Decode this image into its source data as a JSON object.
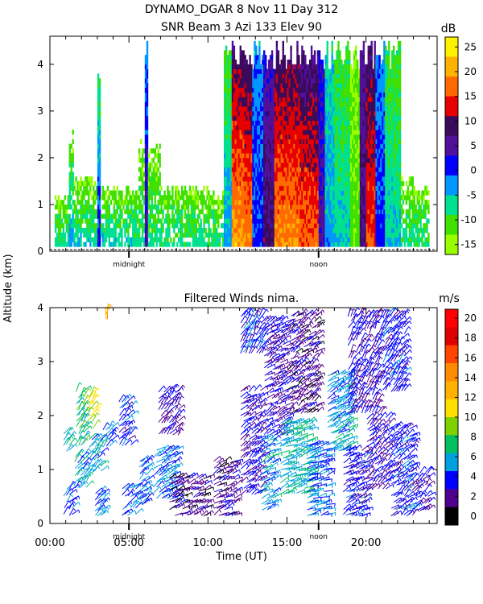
{
  "header": {
    "title_line1": "DYNAMO_DGAR    8 Nov 11 Day 312",
    "title_line2": "SNR Beam 3 Azi 133 Elev 90"
  },
  "shared": {
    "y_axis_label": "Altitude (km)",
    "x_axis_label": "Time (UT)",
    "x_tick_labels": [
      "00:00",
      "05:00",
      "10:00",
      "15:00",
      "20:00"
    ],
    "x_ticks_hours": [
      0,
      5,
      10,
      15,
      20
    ],
    "marker_labels": [
      "midnight",
      "noon"
    ],
    "marker_hours": [
      5,
      17
    ]
  },
  "chart_data": [
    {
      "type": "heatmap",
      "title": "SNR Beam 3 Azi 133 Elev 90",
      "xlabel": "",
      "ylabel": "Altitude (km)",
      "xlim": [
        0,
        24.5
      ],
      "ylim": [
        0,
        4.6
      ],
      "yticks": [
        0,
        1,
        2,
        3,
        4
      ],
      "colorbar": {
        "unit": "dB",
        "ticks": [
          25,
          20,
          15,
          10,
          5,
          0,
          -5,
          -10,
          -15
        ],
        "bins": [
          {
            "min": 27.5,
            "color": "#fff200"
          },
          {
            "min": 22.5,
            "color": "#ffb200"
          },
          {
            "min": 17.5,
            "color": "#ff6a00"
          },
          {
            "min": 12.5,
            "color": "#e60000"
          },
          {
            "min": 7.5,
            "color": "#3c0a5a"
          },
          {
            "min": 2.5,
            "color": "#50109a"
          },
          {
            "min": -2.5,
            "color": "#0000ff"
          },
          {
            "min": -7.5,
            "color": "#0096ff"
          },
          {
            "min": -12.5,
            "color": "#00e090"
          },
          {
            "min": -17.5,
            "color": "#40e000"
          },
          {
            "min": -22.5,
            "color": "#99ff00"
          }
        ]
      },
      "columns": [
        {
          "t0": 0.3,
          "t1": 1.2,
          "h_top": 1.2,
          "snr_surface": -10,
          "snr_top": -18
        },
        {
          "t0": 1.2,
          "t1": 1.5,
          "h_top": 2.6,
          "snr_surface": -5,
          "snr_top": -18
        },
        {
          "t0": 1.5,
          "t1": 3.0,
          "h_top": 1.6,
          "snr_surface": -8,
          "snr_top": -18
        },
        {
          "t0": 3.0,
          "t1": 3.2,
          "h_top": 4.2,
          "snr_surface": 2,
          "snr_top": -15
        },
        {
          "t0": 3.2,
          "t1": 5.6,
          "h_top": 1.4,
          "snr_surface": -8,
          "snr_top": -18
        },
        {
          "t0": 5.6,
          "t1": 6.0,
          "h_top": 2.4,
          "snr_surface": -10,
          "snr_top": -18
        },
        {
          "t0": 6.0,
          "t1": 6.2,
          "h_top": 4.5,
          "snr_surface": 5,
          "snr_top": -5
        },
        {
          "t0": 6.2,
          "t1": 7.0,
          "h_top": 2.3,
          "snr_surface": -10,
          "snr_top": -18
        },
        {
          "t0": 7.0,
          "t1": 10.0,
          "h_top": 1.4,
          "snr_surface": -10,
          "snr_top": -18
        },
        {
          "t0": 10.0,
          "t1": 11.0,
          "h_top": 1.3,
          "snr_surface": -10,
          "snr_top": -18
        },
        {
          "t0": 11.0,
          "t1": 11.5,
          "h_top": 4.5,
          "snr_surface": -5,
          "snr_top": -15
        },
        {
          "t0": 11.5,
          "t1": 12.3,
          "h_top": 4.5,
          "snr_surface": 25,
          "snr_top": 8
        },
        {
          "t0": 12.3,
          "t1": 12.8,
          "h_top": 4.5,
          "snr_surface": 22,
          "snr_top": 8
        },
        {
          "t0": 12.8,
          "t1": 13.5,
          "h_top": 4.5,
          "snr_surface": 0,
          "snr_top": -5
        },
        {
          "t0": 13.5,
          "t1": 14.2,
          "h_top": 4.5,
          "snr_surface": 10,
          "snr_top": 2
        },
        {
          "t0": 14.2,
          "t1": 15.8,
          "h_top": 4.5,
          "snr_surface": 23,
          "snr_top": 8
        },
        {
          "t0": 15.8,
          "t1": 17.0,
          "h_top": 4.5,
          "snr_surface": 20,
          "snr_top": 6
        },
        {
          "t0": 17.0,
          "t1": 17.4,
          "h_top": 4.5,
          "snr_surface": 5,
          "snr_top": 0
        },
        {
          "t0": 17.4,
          "t1": 18.0,
          "h_top": 4.5,
          "snr_surface": -5,
          "snr_top": -10
        },
        {
          "t0": 18.0,
          "t1": 19.0,
          "h_top": 4.5,
          "snr_surface": -8,
          "snr_top": -15
        },
        {
          "t0": 19.0,
          "t1": 19.6,
          "h_top": 4.5,
          "snr_surface": -15,
          "snr_top": -18
        },
        {
          "t0": 19.6,
          "t1": 20.0,
          "h_top": 4.5,
          "snr_surface": 8,
          "snr_top": 5
        },
        {
          "t0": 20.0,
          "t1": 20.6,
          "h_top": 4.5,
          "snr_surface": 18,
          "snr_top": 8
        },
        {
          "t0": 20.6,
          "t1": 21.2,
          "h_top": 4.5,
          "snr_surface": 0,
          "snr_top": -5
        },
        {
          "t0": 21.2,
          "t1": 22.2,
          "h_top": 4.5,
          "snr_surface": -8,
          "snr_top": -15
        },
        {
          "t0": 22.2,
          "t1": 23.0,
          "h_top": 1.6,
          "snr_surface": -10,
          "snr_top": -18
        },
        {
          "t0": 23.0,
          "t1": 24.0,
          "h_top": 1.4,
          "snr_surface": -10,
          "snr_top": -18
        }
      ]
    },
    {
      "type": "scatter",
      "title": "Filtered Winds nima.",
      "xlabel": "Time (UT)",
      "ylabel": "Altitude (km)",
      "xlim": [
        0,
        24.5
      ],
      "ylim": [
        0,
        4
      ],
      "yticks": [
        0,
        1,
        2,
        3,
        4
      ],
      "colorbar": {
        "unit": "m/s",
        "ticks": [
          20,
          18,
          16,
          14,
          12,
          10,
          8,
          6,
          4,
          2,
          0
        ],
        "bins": [
          {
            "min": 21,
            "color": "#ff0000"
          },
          {
            "min": 19,
            "color": "#e00000"
          },
          {
            "min": 17,
            "color": "#ff4500"
          },
          {
            "min": 15,
            "color": "#ff8c00"
          },
          {
            "min": 13,
            "color": "#ffb000"
          },
          {
            "min": 11,
            "color": "#ffe000"
          },
          {
            "min": 9,
            "color": "#80d000"
          },
          {
            "min": 7,
            "color": "#00c060"
          },
          {
            "min": 5,
            "color": "#00a0e0"
          },
          {
            "min": 3,
            "color": "#0000ff"
          },
          {
            "min": 1,
            "color": "#500090"
          },
          {
            "min": -1,
            "color": "#000000"
          }
        ]
      },
      "wind_clusters": [
        {
          "t0": 0.8,
          "t1": 1.3,
          "h0": 1.3,
          "h1": 1.7,
          "speed": 7,
          "dir": -55
        },
        {
          "t0": 0.8,
          "t1": 1.5,
          "h0": 0.1,
          "h1": 0.7,
          "speed": 5,
          "dir": -50
        },
        {
          "t0": 1.6,
          "t1": 2.2,
          "h0": 1.4,
          "h1": 2.5,
          "speed": 8,
          "dir": -55
        },
        {
          "t0": 1.5,
          "t1": 2.4,
          "h0": 0.6,
          "h1": 1.3,
          "speed": 6,
          "dir": -50
        },
        {
          "t0": 2.3,
          "t1": 2.8,
          "h0": 1.7,
          "h1": 2.4,
          "speed": 11,
          "dir": -55
        },
        {
          "t0": 2.4,
          "t1": 3.3,
          "h0": 0.9,
          "h1": 1.6,
          "speed": 6,
          "dir": -50
        },
        {
          "t0": 2.8,
          "t1": 3.4,
          "h0": 0.1,
          "h1": 0.6,
          "speed": 5,
          "dir": -45
        },
        {
          "t0": 3.3,
          "t1": 4.0,
          "h0": 1.4,
          "h1": 1.8,
          "speed": 5,
          "dir": -50
        },
        {
          "t0": 4.5,
          "t1": 5.5,
          "h0": 0.1,
          "h1": 0.7,
          "speed": 5,
          "dir": -40
        },
        {
          "t0": 4.3,
          "t1": 5.2,
          "h0": 1.4,
          "h1": 2.3,
          "speed": 4,
          "dir": -45
        },
        {
          "t0": 5.6,
          "t1": 6.2,
          "h0": 0.3,
          "h1": 1.2,
          "speed": 5,
          "dir": -40
        },
        {
          "t0": 6.5,
          "t1": 8.0,
          "h0": 0.4,
          "h1": 1.4,
          "speed": 5,
          "dir": -35
        },
        {
          "t0": 6.8,
          "t1": 8.2,
          "h0": 1.6,
          "h1": 2.5,
          "speed": 3,
          "dir": -50
        },
        {
          "t0": 7.5,
          "t1": 10.0,
          "h0": 0.1,
          "h1": 0.9,
          "speed": 2,
          "dir": -30
        },
        {
          "t0": 10.3,
          "t1": 11.8,
          "h0": 0.1,
          "h1": 1.2,
          "speed": 2,
          "dir": -30
        },
        {
          "t0": 12.0,
          "t1": 13.4,
          "h0": 0.5,
          "h1": 2.5,
          "speed": 3,
          "dir": -40
        },
        {
          "t0": 12.0,
          "t1": 13.5,
          "h0": 3.1,
          "h1": 3.9,
          "speed": 4,
          "dir": -60
        },
        {
          "t0": 13.3,
          "t1": 14.2,
          "h0": 0.2,
          "h1": 1.6,
          "speed": 6,
          "dir": -30
        },
        {
          "t0": 13.5,
          "t1": 15.0,
          "h0": 1.6,
          "h1": 3.8,
          "speed": 3,
          "dir": -35
        },
        {
          "t0": 14.5,
          "t1": 16.5,
          "h0": 0.5,
          "h1": 1.9,
          "speed": 7,
          "dir": -25
        },
        {
          "t0": 15.0,
          "t1": 17.0,
          "h0": 2.0,
          "h1": 3.9,
          "speed": 2,
          "dir": -40
        },
        {
          "t0": 16.2,
          "t1": 17.6,
          "h0": 0.1,
          "h1": 1.5,
          "speed": 5,
          "dir": -20
        },
        {
          "t0": 17.5,
          "t1": 19.0,
          "h0": 1.3,
          "h1": 2.8,
          "speed": 6,
          "dir": -35
        },
        {
          "t0": 18.5,
          "t1": 20.0,
          "h0": 0.1,
          "h1": 1.4,
          "speed": 4,
          "dir": -30
        },
        {
          "t0": 18.8,
          "t1": 21.0,
          "h0": 2.0,
          "h1": 3.9,
          "speed": 3,
          "dir": -60
        },
        {
          "t0": 20.0,
          "t1": 21.5,
          "h0": 0.6,
          "h1": 2.0,
          "speed": 3,
          "dir": -45
        },
        {
          "t0": 21.0,
          "t1": 22.5,
          "h0": 2.4,
          "h1": 3.9,
          "speed": 4,
          "dir": -55
        },
        {
          "t0": 21.5,
          "t1": 23.0,
          "h0": 0.1,
          "h1": 1.8,
          "speed": 4,
          "dir": -40
        },
        {
          "t0": 23.0,
          "t1": 24.0,
          "h0": 0.2,
          "h1": 1.0,
          "speed": 3,
          "dir": -45
        },
        {
          "t0": 3.5,
          "t1": 3.7,
          "h0": 3.75,
          "h1": 3.9,
          "speed": 15,
          "dir": -80
        }
      ]
    }
  ]
}
